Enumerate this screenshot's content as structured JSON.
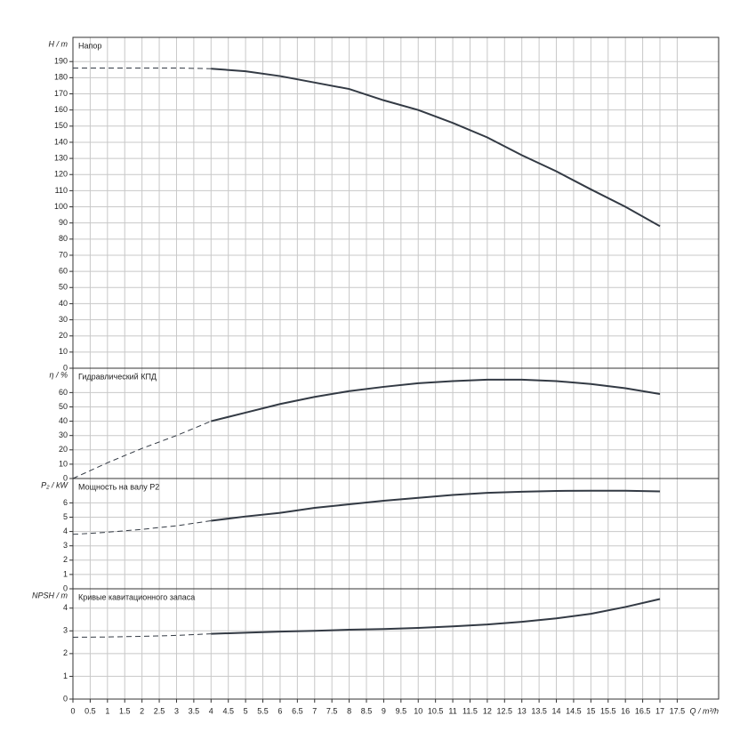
{
  "chart_data": [
    {
      "type": "line",
      "title": "Напор",
      "ylabel": "H / m",
      "xlim": [
        0,
        18.7
      ],
      "ylim": [
        0,
        205
      ],
      "yticks": [
        0,
        10,
        20,
        30,
        40,
        50,
        60,
        70,
        80,
        90,
        100,
        110,
        120,
        130,
        140,
        150,
        160,
        170,
        180,
        190
      ],
      "grid": true,
      "x": [
        0,
        1,
        2,
        3,
        4,
        5,
        6,
        7,
        8,
        9,
        10,
        11,
        12,
        13,
        14,
        15,
        16,
        17
      ],
      "series": [
        {
          "color": "#333a44",
          "dashed": true,
          "values": [
            186,
            186,
            186,
            186,
            185.6,
            null,
            null,
            null,
            null,
            null,
            null,
            null,
            null,
            null,
            null,
            null,
            null,
            null
          ]
        },
        {
          "color": "#333a44",
          "dashed": false,
          "values": [
            null,
            null,
            null,
            null,
            185.6,
            184,
            181,
            177,
            173,
            166,
            160,
            152,
            143,
            132,
            122,
            110.8,
            100,
            88
          ]
        }
      ]
    },
    {
      "type": "line",
      "title": "Гидравлический КПД",
      "ylabel": "η / %",
      "xlim": [
        0,
        18.7
      ],
      "ylim": [
        0,
        77
      ],
      "yticks": [
        0,
        10,
        20,
        30,
        40,
        50,
        60
      ],
      "grid": true,
      "x": [
        0,
        1,
        2,
        3,
        4,
        5,
        6,
        7,
        8,
        9,
        10,
        11,
        12,
        13,
        14,
        15,
        16,
        17
      ],
      "series": [
        {
          "color": "#333a44",
          "dashed": true,
          "values": [
            0,
            11,
            21,
            30,
            40,
            null,
            null,
            null,
            null,
            null,
            null,
            null,
            null,
            null,
            null,
            null,
            null,
            null
          ]
        },
        {
          "color": "#333a44",
          "dashed": false,
          "values": [
            null,
            null,
            null,
            null,
            40,
            46,
            52,
            57,
            61,
            64,
            66.5,
            68,
            69,
            69,
            68,
            66,
            63,
            59
          ]
        }
      ]
    },
    {
      "type": "line",
      "title": "Мощность на валу P2",
      "ylabel": "P₂ / kW",
      "xlim": [
        0,
        18.7
      ],
      "ylim": [
        0,
        7.7
      ],
      "yticks": [
        0,
        1,
        2,
        3,
        4,
        5,
        6
      ],
      "grid": true,
      "x": [
        0,
        1,
        2,
        3,
        4,
        5,
        6,
        7,
        8,
        9,
        10,
        11,
        12,
        13,
        14,
        15,
        16,
        17
      ],
      "series": [
        {
          "color": "#333a44",
          "dashed": true,
          "values": [
            3.8,
            3.95,
            4.15,
            4.4,
            4.75,
            null,
            null,
            null,
            null,
            null,
            null,
            null,
            null,
            null,
            null,
            null,
            null,
            null
          ]
        },
        {
          "color": "#333a44",
          "dashed": false,
          "values": [
            null,
            null,
            null,
            null,
            4.75,
            5.05,
            5.3,
            5.65,
            5.9,
            6.15,
            6.35,
            6.55,
            6.7,
            6.78,
            6.83,
            6.85,
            6.85,
            6.8
          ]
        }
      ]
    },
    {
      "type": "line",
      "title": "Кривые кавитационного запаса",
      "ylabel": "NPSH / m",
      "xlabel": "Q / m³/h",
      "xlim": [
        0,
        18.7
      ],
      "ylim": [
        0,
        4.85
      ],
      "yticks": [
        0,
        1,
        2,
        3,
        4
      ],
      "grid": true,
      "xticks": [
        0,
        0.5,
        1,
        1.5,
        2,
        2.5,
        3,
        3.5,
        4,
        4.5,
        5,
        5.5,
        6,
        6.5,
        7,
        7.5,
        8,
        8.5,
        9,
        9.5,
        10,
        10.5,
        11,
        11.5,
        12,
        12.5,
        13,
        13.5,
        14,
        14.5,
        15,
        15.5,
        16,
        16.5,
        17,
        17.5
      ],
      "x": [
        0,
        1,
        2,
        3,
        4,
        5,
        6,
        7,
        8,
        9,
        10,
        11,
        12,
        13,
        14,
        15,
        16,
        17
      ],
      "series": [
        {
          "color": "#333a44",
          "dashed": true,
          "values": [
            2.72,
            2.73,
            2.76,
            2.8,
            2.87,
            null,
            null,
            null,
            null,
            null,
            null,
            null,
            null,
            null,
            null,
            null,
            null,
            null
          ]
        },
        {
          "color": "#333a44",
          "dashed": false,
          "values": [
            null,
            null,
            null,
            null,
            2.87,
            2.92,
            2.97,
            3.0,
            3.05,
            3.08,
            3.13,
            3.2,
            3.28,
            3.4,
            3.55,
            3.75,
            4.05,
            4.4
          ]
        }
      ]
    }
  ]
}
